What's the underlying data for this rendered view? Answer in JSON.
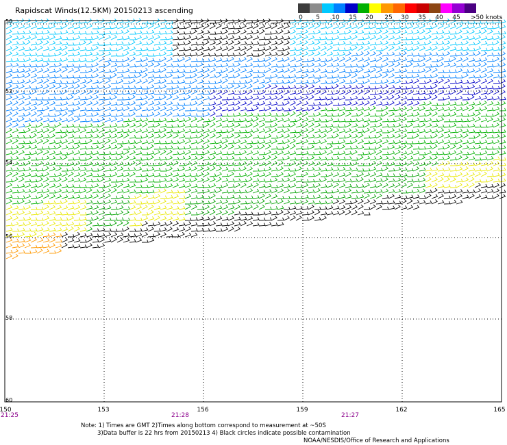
{
  "title": "Rapidscat Winds(12.5KM) 20150213 ascending",
  "legend": {
    "labels": [
      "0",
      "5",
      "10",
      "15",
      "20",
      "25",
      "30",
      "35",
      "40",
      "45"
    ],
    "units": ">50 knots",
    "colors": [
      "#3c3c3c",
      "#8c8c8c",
      "#00c8ff",
      "#0080ff",
      "#0000c8",
      "#00b000",
      "#ffff00",
      "#ff9900",
      "#ff6600",
      "#ff0000",
      "#c80000",
      "#8b4513",
      "#ff00ff",
      "#9400d3",
      "#4b0082"
    ]
  },
  "axes": {
    "lat_labels": [
      "50",
      "52",
      "54",
      "56",
      "58",
      "60"
    ],
    "lon_labels": [
      "150",
      "153",
      "156",
      "159",
      "162",
      "165"
    ],
    "time_labels": [
      "21:25",
      "21:28",
      "21:27"
    ]
  },
  "notes": {
    "line1": "Note: 1) Times are GMT 2)Times along bottom correspond to measurement at ~50S",
    "line2": "3)Data buffer is 22 hrs from 20150213 4) Black circles indicate possible contamination",
    "line3": "NOAA/NESDIS/Office of Research and Applications"
  }
}
